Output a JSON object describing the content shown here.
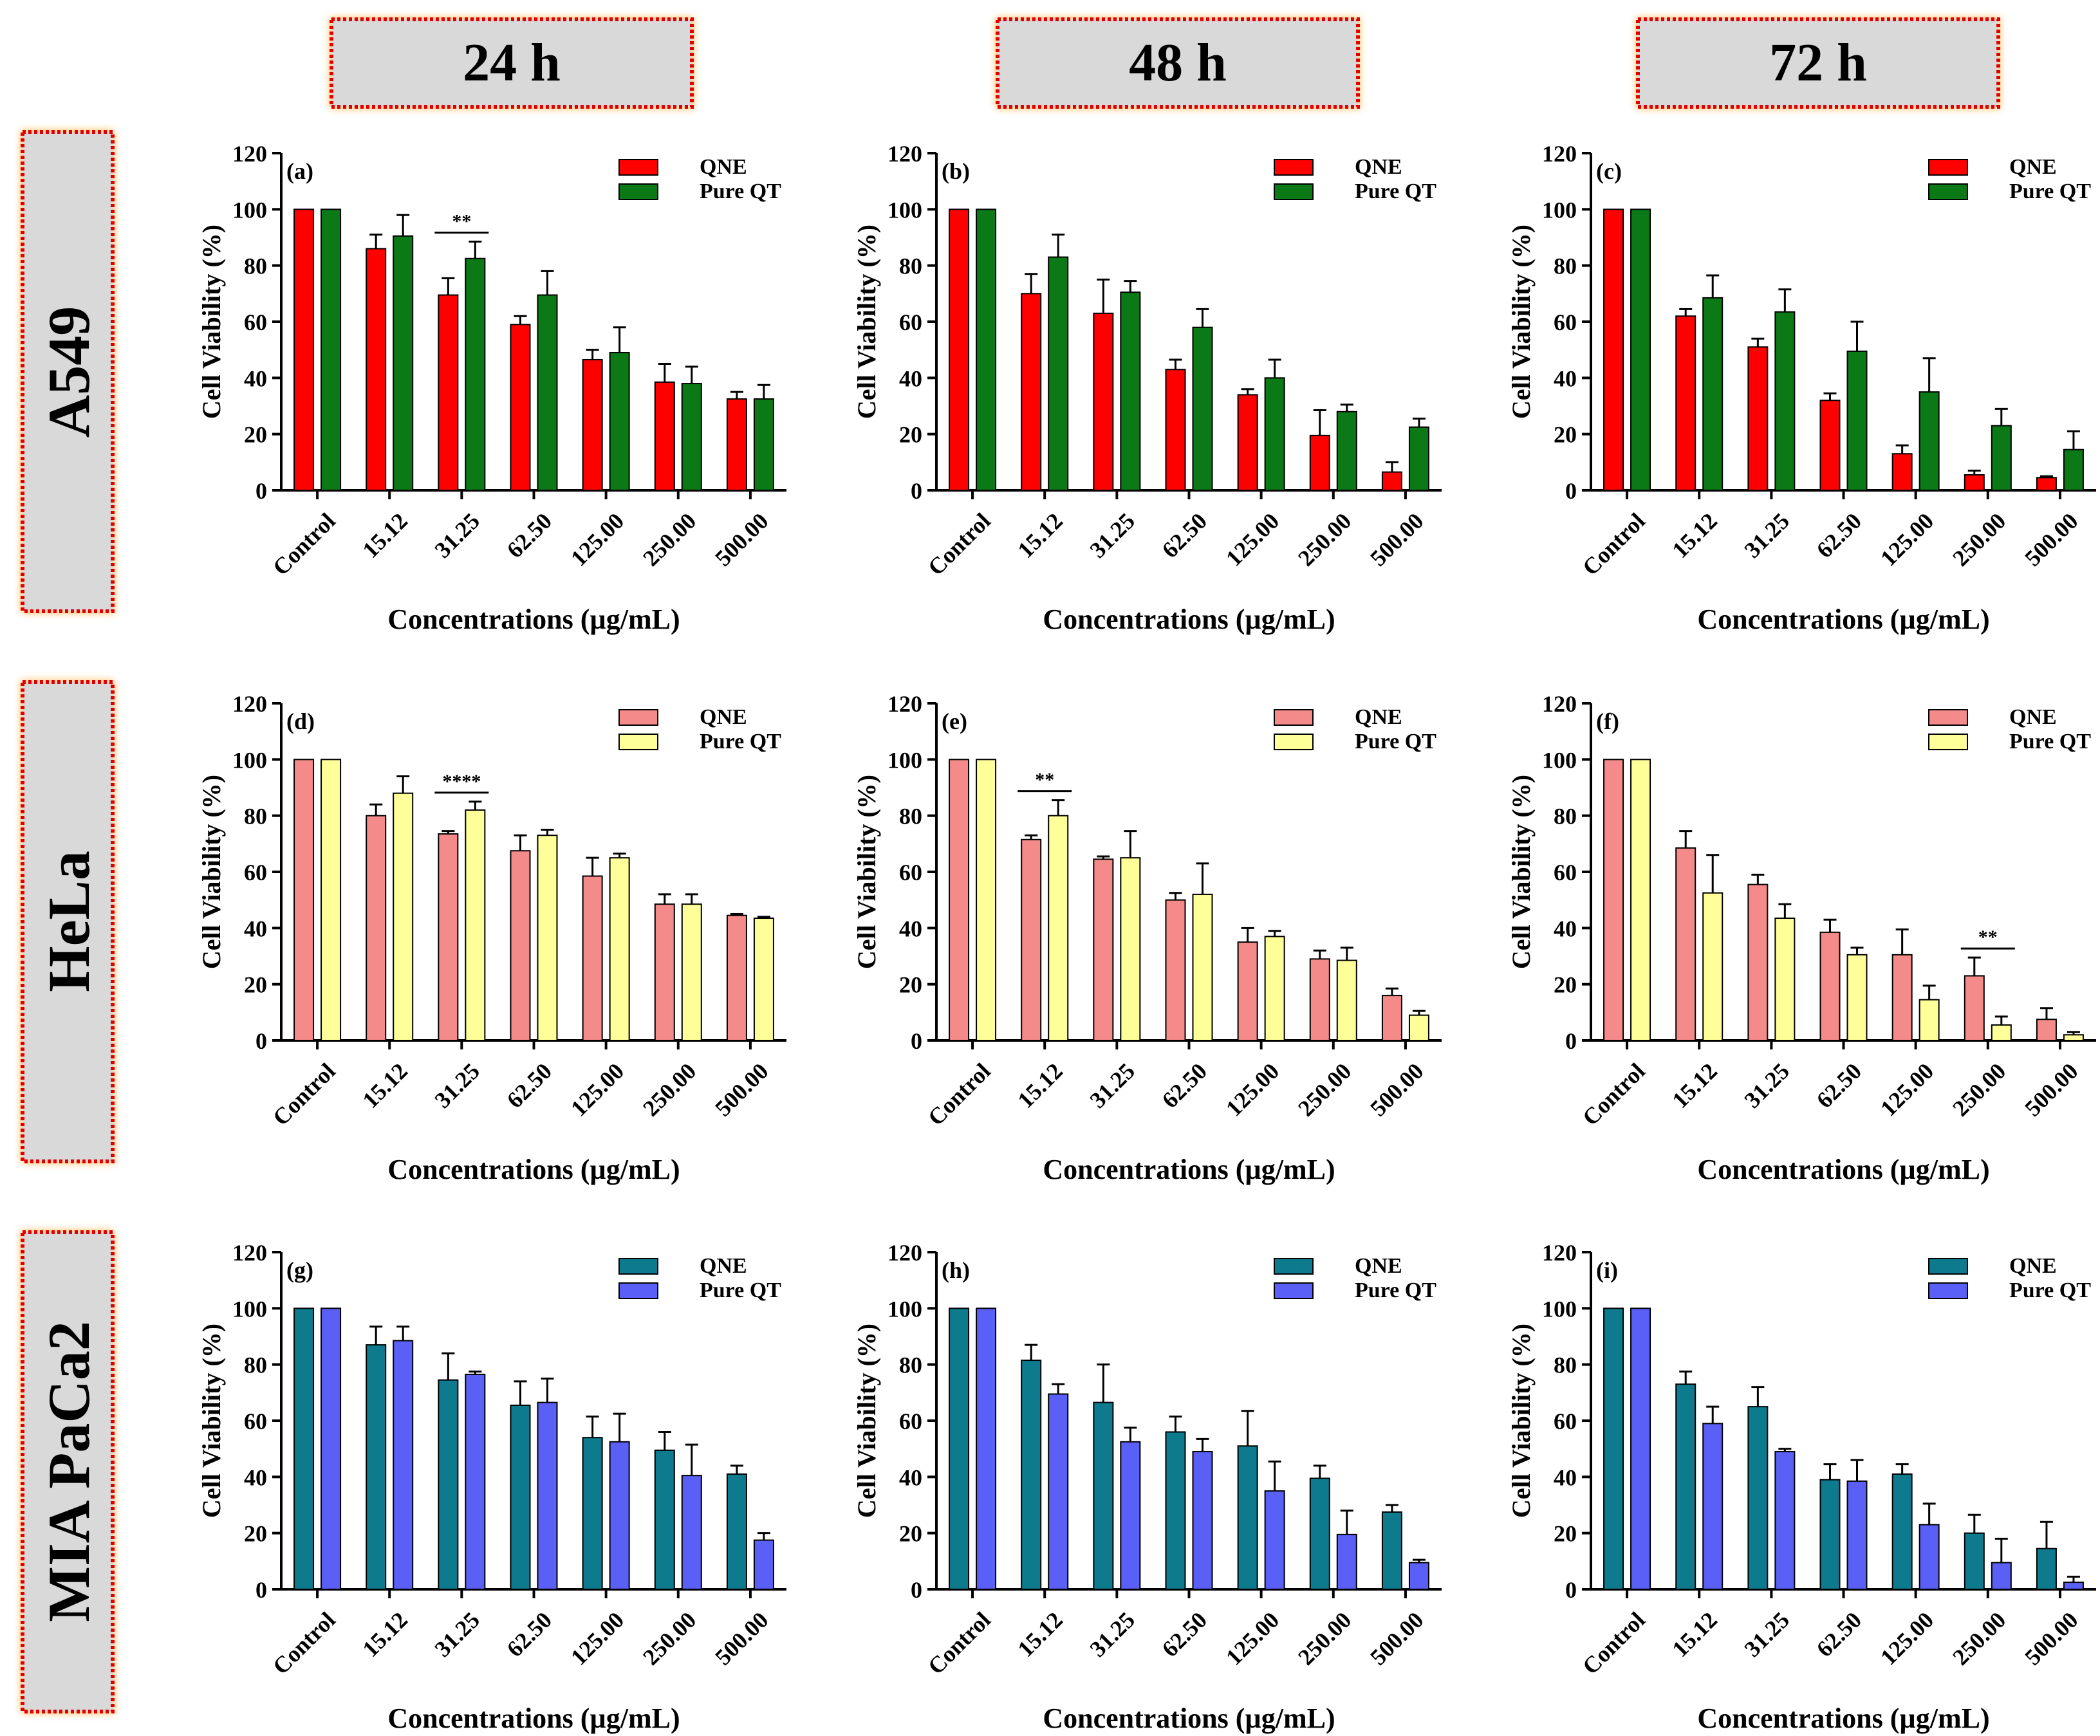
{
  "colors": {
    "a549_qne": "#ff0000",
    "a549_qt": "#0b7a16",
    "hela_qne": "#f58a8a",
    "hela_qt": "#ffff99",
    "mia_qne": "#0d7a8e",
    "mia_qt": "#5a5ff5",
    "header_bg": "#d9d9d9",
    "header_border": "#e00000",
    "header_glow": "#ffb347"
  },
  "column_headers": [
    "24 h",
    "48 h",
    "72 h"
  ],
  "row_headers": [
    "A549",
    "HeLa",
    "MIA PaCa2"
  ],
  "chart_data": [
    {
      "type": "bar",
      "panel": "(a)",
      "row": 0,
      "col": 0,
      "categories": [
        "Control",
        "15.12",
        "31.25",
        "62.50",
        "125.00",
        "250.00",
        "500.00"
      ],
      "series": [
        {
          "name": "QNE",
          "values": [
            100,
            86,
            69.5,
            59,
            46.5,
            38.5,
            32.5
          ],
          "errors": [
            0,
            5,
            6,
            3,
            3.5,
            6.5,
            2.5
          ]
        },
        {
          "name": "Pure QT",
          "values": [
            100,
            90.5,
            82.5,
            69.5,
            49,
            38,
            32.5
          ],
          "errors": [
            0,
            7.5,
            6,
            8.5,
            9,
            6,
            5
          ]
        }
      ],
      "ylabel": "Cell Viability (%)",
      "xlabel": "Concentrations (µg/mL)",
      "ylim": [
        0,
        120
      ],
      "yticks": [
        0,
        20,
        40,
        60,
        80,
        100,
        120
      ],
      "legend": "top-right",
      "significance": [
        {
          "category": "31.25",
          "label": "**"
        }
      ]
    },
    {
      "type": "bar",
      "panel": "(b)",
      "row": 0,
      "col": 1,
      "categories": [
        "Control",
        "15.12",
        "31.25",
        "62.50",
        "125.00",
        "250.00",
        "500.00"
      ],
      "series": [
        {
          "name": "QNE",
          "values": [
            100,
            70,
            63,
            43,
            34,
            19.5,
            6.5
          ],
          "errors": [
            0,
            7,
            12,
            3.5,
            2,
            9,
            3.5
          ]
        },
        {
          "name": "Pure QT",
          "values": [
            100,
            83,
            70.5,
            58,
            40,
            28,
            22.5
          ],
          "errors": [
            0,
            8,
            4,
            6.5,
            6.5,
            2.5,
            3
          ]
        }
      ],
      "ylabel": "Cell Viability (%)",
      "xlabel": "Concentrations (µg/mL)",
      "ylim": [
        0,
        120
      ],
      "yticks": [
        0,
        20,
        40,
        60,
        80,
        100,
        120
      ],
      "legend": "top-right",
      "significance": []
    },
    {
      "type": "bar",
      "panel": "(c)",
      "row": 0,
      "col": 2,
      "categories": [
        "Control",
        "15.12",
        "31.25",
        "62.50",
        "125.00",
        "250.00",
        "500.00"
      ],
      "series": [
        {
          "name": "QNE",
          "values": [
            100,
            62,
            51,
            32,
            13,
            5.5,
            4.5
          ],
          "errors": [
            0,
            2.5,
            3,
            2.5,
            3,
            1.5,
            0.5
          ]
        },
        {
          "name": "Pure QT",
          "values": [
            100,
            68.5,
            63.5,
            49.5,
            35,
            23,
            14.5
          ],
          "errors": [
            0,
            8,
            8,
            10.5,
            12,
            6,
            6.5
          ]
        }
      ],
      "ylabel": "Cell Viability (%)",
      "xlabel": "Concentrations (µg/mL)",
      "ylim": [
        0,
        120
      ],
      "yticks": [
        0,
        20,
        40,
        60,
        80,
        100,
        120
      ],
      "legend": "top-right",
      "significance": []
    },
    {
      "type": "bar",
      "panel": "(d)",
      "row": 1,
      "col": 0,
      "categories": [
        "Control",
        "15.12",
        "31.25",
        "62.50",
        "125.00",
        "250.00",
        "500.00"
      ],
      "series": [
        {
          "name": "QNE",
          "values": [
            100,
            80,
            73.5,
            67.5,
            58.5,
            48.5,
            44.5
          ],
          "errors": [
            0,
            4,
            1,
            5.5,
            6.5,
            3.5,
            0.5
          ]
        },
        {
          "name": "Pure QT",
          "values": [
            100,
            88,
            82,
            73,
            65,
            48.5,
            43.5
          ],
          "errors": [
            0,
            6,
            3,
            2,
            1.5,
            3.5,
            0.5
          ]
        }
      ],
      "ylabel": "Cell Viability (%)",
      "xlabel": "Concentrations (µg/mL)",
      "ylim": [
        0,
        120
      ],
      "yticks": [
        0,
        20,
        40,
        60,
        80,
        100,
        120
      ],
      "legend": "top-right",
      "significance": [
        {
          "category": "31.25",
          "label": "****"
        }
      ]
    },
    {
      "type": "bar",
      "panel": "(e)",
      "row": 1,
      "col": 1,
      "categories": [
        "Control",
        "15.12",
        "31.25",
        "62.50",
        "125.00",
        "250.00",
        "500.00"
      ],
      "series": [
        {
          "name": "QNE",
          "values": [
            100,
            71.5,
            64.5,
            50,
            35,
            29,
            16
          ],
          "errors": [
            0,
            1.5,
            1,
            2.5,
            5,
            3,
            2.5
          ]
        },
        {
          "name": "Pure QT",
          "values": [
            100,
            80,
            65,
            52,
            37,
            28.5,
            9
          ],
          "errors": [
            0,
            5.5,
            9.5,
            11,
            2,
            4.5,
            1.5
          ]
        }
      ],
      "ylabel": "Cell Viability (%)",
      "xlabel": "Concentrations (µg/mL)",
      "ylim": [
        0,
        120
      ],
      "yticks": [
        0,
        20,
        40,
        60,
        80,
        100,
        120
      ],
      "legend": "top-right",
      "significance": [
        {
          "category": "15.12",
          "label": "**"
        }
      ]
    },
    {
      "type": "bar",
      "panel": "(f)",
      "row": 1,
      "col": 2,
      "categories": [
        "Control",
        "15.12",
        "31.25",
        "62.50",
        "125.00",
        "250.00",
        "500.00"
      ],
      "series": [
        {
          "name": "QNE",
          "values": [
            100,
            68.5,
            55.5,
            38.5,
            30.5,
            23,
            7.5
          ],
          "errors": [
            0,
            6,
            3.5,
            4.5,
            9,
            6.5,
            4
          ]
        },
        {
          "name": "Pure QT",
          "values": [
            100,
            52.5,
            43.5,
            30.5,
            14.5,
            5.5,
            2
          ],
          "errors": [
            0,
            13.5,
            5,
            2.5,
            5,
            3,
            1
          ]
        }
      ],
      "ylabel": "Cell Viability (%)",
      "xlabel": "Concentrations (µg/mL)",
      "ylim": [
        0,
        120
      ],
      "yticks": [
        0,
        20,
        40,
        60,
        80,
        100,
        120
      ],
      "legend": "top-right",
      "significance": [
        {
          "category": "250.00",
          "label": "**"
        }
      ]
    },
    {
      "type": "bar",
      "panel": "(g)",
      "row": 2,
      "col": 0,
      "categories": [
        "Control",
        "15.12",
        "31.25",
        "62.50",
        "125.00",
        "250.00",
        "500.00"
      ],
      "series": [
        {
          "name": "QNE",
          "values": [
            100,
            87,
            74.5,
            65.5,
            54,
            49.5,
            41
          ],
          "errors": [
            0,
            6.5,
            9.5,
            8.5,
            7.5,
            6.5,
            3
          ]
        },
        {
          "name": "Pure QT",
          "values": [
            100,
            88.5,
            76.5,
            66.5,
            52.5,
            40.5,
            17.5
          ],
          "errors": [
            0,
            5,
            1,
            8.5,
            10,
            11,
            2.5
          ]
        }
      ],
      "ylabel": "Cell Viability (%)",
      "xlabel": "Concentrations (µg/mL)",
      "ylim": [
        0,
        120
      ],
      "yticks": [
        0,
        20,
        40,
        60,
        80,
        100,
        120
      ],
      "legend": "top-right",
      "significance": []
    },
    {
      "type": "bar",
      "panel": "(h)",
      "row": 2,
      "col": 1,
      "categories": [
        "Control",
        "15.12",
        "31.25",
        "62.50",
        "125.00",
        "250.00",
        "500.00"
      ],
      "series": [
        {
          "name": "QNE",
          "values": [
            100,
            81.5,
            66.5,
            56,
            51,
            39.5,
            27.5
          ],
          "errors": [
            0,
            5.5,
            13.5,
            5.5,
            12.5,
            4.5,
            2.5
          ]
        },
        {
          "name": "Pure QT",
          "values": [
            100,
            69.5,
            52.5,
            49,
            35,
            19.5,
            9.5
          ],
          "errors": [
            0,
            3.5,
            5,
            4.5,
            10.5,
            8.5,
            1
          ]
        }
      ],
      "ylabel": "Cell Viability (%)",
      "xlabel": "Concentrations (µg/mL)",
      "ylim": [
        0,
        120
      ],
      "yticks": [
        0,
        20,
        40,
        60,
        80,
        100,
        120
      ],
      "legend": "top-right",
      "significance": []
    },
    {
      "type": "bar",
      "panel": "(i)",
      "row": 2,
      "col": 2,
      "categories": [
        "Control",
        "15.12",
        "31.25",
        "62.50",
        "125.00",
        "250.00",
        "500.00"
      ],
      "series": [
        {
          "name": "QNE",
          "values": [
            100,
            73,
            65,
            39,
            41,
            20,
            14.5
          ],
          "errors": [
            0,
            4.5,
            7,
            5.5,
            3.5,
            6.5,
            9.5
          ]
        },
        {
          "name": "Pure QT",
          "values": [
            100,
            59,
            49,
            38.5,
            23,
            9.5,
            2.5
          ],
          "errors": [
            0,
            6,
            1,
            7.5,
            7.5,
            8.5,
            2
          ]
        }
      ],
      "ylabel": "Cell Viability (%)",
      "xlabel": "Concentrations (µg/mL)",
      "ylim": [
        0,
        120
      ],
      "yticks": [
        0,
        20,
        40,
        60,
        80,
        100,
        120
      ],
      "legend": "top-right",
      "significance": []
    }
  ]
}
